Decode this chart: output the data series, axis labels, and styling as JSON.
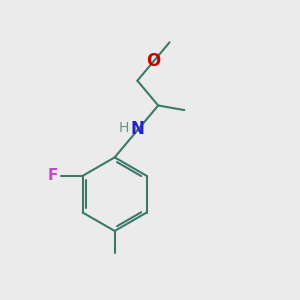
{
  "background_color": "#ebebeb",
  "bond_color": "#3a7a6a",
  "bond_width": 1.5,
  "label_F": "F",
  "label_F_color": "#cc44cc",
  "label_N": "N",
  "label_N_color": "#2222cc",
  "label_H": "H",
  "label_H_color": "#5a9a8a",
  "label_O": "O",
  "label_O_color": "#cc0000",
  "font_size": 10
}
